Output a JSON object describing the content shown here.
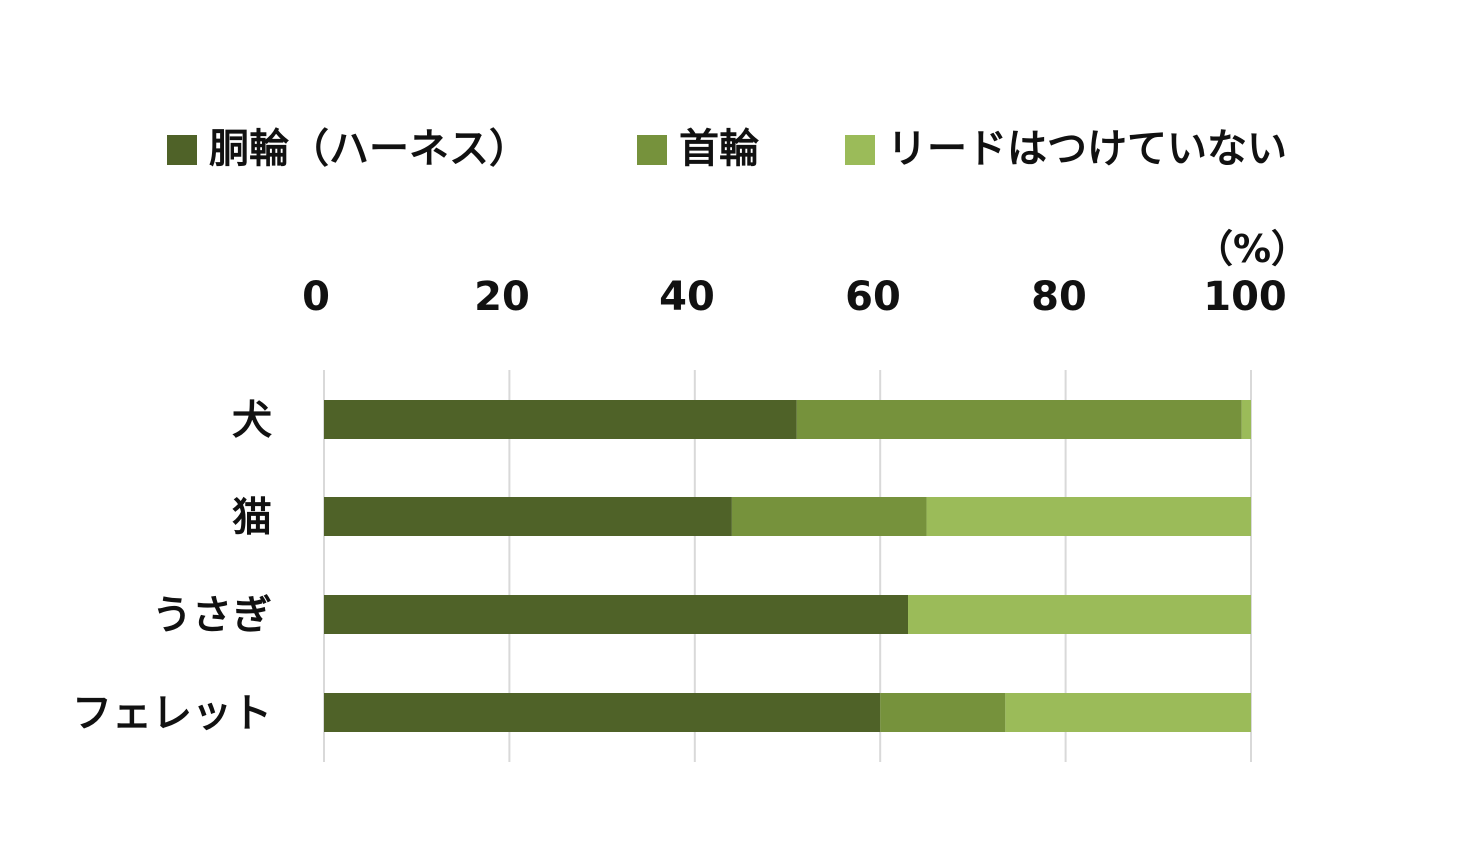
{
  "chart_data": {
    "type": "bar",
    "orientation": "horizontal",
    "stacked": true,
    "unit_label": "（%）",
    "categories": [
      "犬",
      "猫",
      "うさぎ",
      "フェレット"
    ],
    "series": [
      {
        "name": "胴輪（ハーネス）",
        "values": [
          51,
          44,
          63,
          60
        ],
        "color": "#4f6228"
      },
      {
        "name": "首輪",
        "values": [
          48,
          21,
          0,
          13.5
        ],
        "color": "#76923c"
      },
      {
        "name": "リードはつけていない",
        "values": [
          1,
          35,
          37,
          26.5
        ],
        "color": "#9bbb59"
      }
    ],
    "xlim": [
      0,
      100
    ],
    "xticks": [
      0,
      20,
      40,
      60,
      80,
      100
    ],
    "xaxis_position": "top",
    "grid": true,
    "grid_color": "#d9d9d9",
    "legend_position": "top"
  }
}
